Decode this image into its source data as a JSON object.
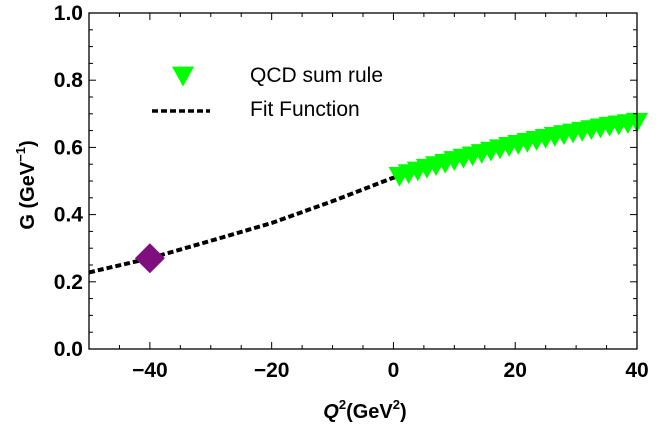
{
  "chart_data": {
    "type": "scatter",
    "title": "",
    "xlabel": {
      "main": "Q",
      "sup": "2",
      "unit_open": "(GeV",
      "unit_sup": "2",
      "unit_close": ")"
    },
    "ylabel": {
      "main": "G (GeV",
      "sup": "−1",
      "close": ")"
    },
    "xlim": [
      -50,
      40
    ],
    "ylim": [
      0.0,
      1.0
    ],
    "x_ticks": [
      -40,
      -20,
      0,
      20,
      40
    ],
    "x_tick_labels": [
      "−40",
      "−20",
      "0",
      "20",
      "40"
    ],
    "y_ticks": [
      0.0,
      0.2,
      0.4,
      0.6,
      0.8,
      1.0
    ],
    "y_tick_labels": [
      "0.0",
      "0.2",
      "0.4",
      "0.6",
      "0.8",
      "1.0"
    ],
    "grid": false,
    "legend_position": "top-left",
    "series": [
      {
        "name": "QCD sum rule",
        "kind": "scatter",
        "marker": "triangle-down",
        "color": "#00ff00",
        "x": [
          1,
          2.5,
          4,
          5.5,
          7,
          8.5,
          10,
          11.5,
          13,
          14.5,
          16,
          17.5,
          19,
          20.5,
          22,
          23.5,
          25,
          26.5,
          28,
          29.5,
          31,
          32.5,
          34,
          35.5,
          37,
          38.5,
          40
        ],
        "y": [
          0.514,
          0.522,
          0.53,
          0.538,
          0.546,
          0.553,
          0.561,
          0.568,
          0.575,
          0.582,
          0.589,
          0.596,
          0.603,
          0.609,
          0.615,
          0.621,
          0.627,
          0.633,
          0.638,
          0.643,
          0.648,
          0.653,
          0.658,
          0.663,
          0.667,
          0.671,
          0.675
        ]
      },
      {
        "name": "Fit Function",
        "kind": "line",
        "style": "dashed",
        "color": "#000000",
        "x": [
          -50,
          -40,
          -30,
          -20,
          -10,
          0,
          1
        ],
        "y": [
          0.228,
          0.27,
          0.322,
          0.375,
          0.44,
          0.51,
          0.514
        ]
      },
      {
        "kind": "scatter",
        "marker": "diamond",
        "color": "#7f0f7e",
        "x": [
          -40
        ],
        "y": [
          0.27
        ]
      }
    ]
  }
}
